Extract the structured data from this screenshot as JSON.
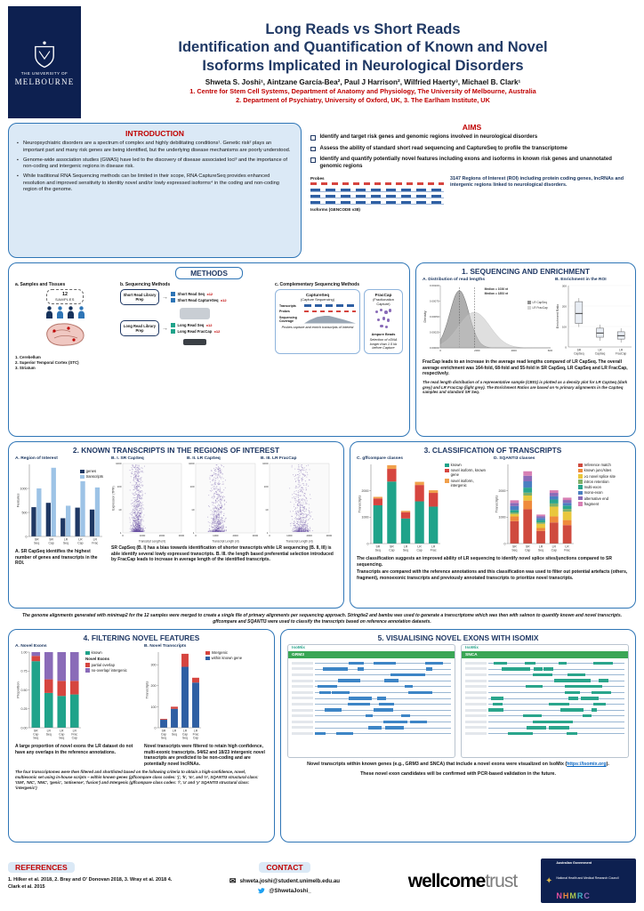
{
  "header": {
    "university_small": "THE UNIVERSITY OF",
    "university_large": "MELBOURNE",
    "title_lines": [
      "Long Reads vs Short Reads",
      "Identification and Quantification of Known and Novel",
      "Isoforms Implicated in Neurological Disorders"
    ],
    "authors": "Shweta S. Joshi¹, Aintzane García-Bea², Paul J Harrison², Wilfried Haerty³, Michael B. Clark¹",
    "affiliations": [
      "1. Centre for Stem Cell Systems, Department of Anatomy and Physiology, The University of Melbourne, Australia",
      "2. Department of Psychiatry, University of Oxford, UK, 3. The Earlham Institute, UK"
    ]
  },
  "introduction": {
    "title": "INTRODUCTION",
    "bullets": [
      "Neuropsychiatric disorders are a spectrum of complex and highly debilitating conditions¹. Genetic risk² plays an important part and many risk genes are being identified, but the underlying disease mechanisms are poorly understood.",
      "Genome-wide association studies (GWAS) have led to the discovery of disease associated loci³ and the importance of non-coding and intergenic regions in disease risk.",
      "While traditional RNA Sequencing methods can be limited in their scope, RNA CaptureSeq provides enhanced resolution and improved sensitivity to identity novel and/or lowly expressed isoforms⁴ in the coding and non-coding region of the genome."
    ]
  },
  "aims": {
    "title": "AIMS",
    "items": [
      "Identify and target risk genes and genomic regions involved in neurological disorders",
      "Assess the ability of standard short read sequencing and CaptureSeq to profile the transcriptome",
      "Identify and quantify potentially novel features including exons and isoforms in known risk genes and unannotated genomic regions"
    ],
    "figure": {
      "probes_label": "Probes",
      "isoforms_label": "Isoforms (GENCODE v38)",
      "caption": "3147 Regions of Interest (ROI) including protein coding genes, lncRNAs and intergenic regions linked to neurological disorders."
    }
  },
  "methods": {
    "title": "METHODS",
    "panel_a": {
      "title": "a. Samples and Tissues",
      "samples_number": "12",
      "samples_word": "SAMPLES",
      "regions": [
        "1. Cerebellum",
        "2. Superior Temporal Cortex (STC)",
        "3. Striatum"
      ]
    },
    "panel_b": {
      "title": "b. Sequencing Methods",
      "short_prep": "Short Read Library Prep",
      "long_prep": "Long Read Library Prep",
      "outputs": [
        {
          "label": "Short Read Seq",
          "tag": "x12"
        },
        {
          "label": "Short Read CaptureSeq",
          "tag": "x12"
        },
        {
          "label": "Long Read Seq",
          "tag": "x12"
        },
        {
          "label": "Long Read FracCap",
          "tag": "x12"
        }
      ]
    },
    "panel_c": {
      "title": "c. Complementary Sequencing Methods",
      "capture": {
        "title": "CaptureSeq",
        "subtitle": "(Capture Sequencing)",
        "labels": [
          "Transcripts",
          "Probes",
          "Sequencing Coverage"
        ],
        "caption": "Probes capture and enrich transcripts of interest"
      },
      "fraccap": {
        "title": "FracCap",
        "subtitle": "(Fractionation Capture)",
        "beads_label": "Ampure Beads",
        "caption": "Selection of cDNA longer than 1.5 kb before Capture"
      }
    }
  },
  "section1": {
    "title": "1. SEQUENCING AND ENRICHMENT",
    "caption_bold": "FracCap leads to an increase in the average read lengths compared of LR CapSeq. The overall average enrichment was 164-fold, 68-fold and 55-fold in SR CapSeq, LR CapSeq and LR FracCap, respectively.",
    "footnote": "The read length distribution of a representative sample (CB01) is plotted as a density plot for LR CapSeq (dark grey) and LR FracCap (light grey). The Enrichment Ratios are based on % primary alignments in the CapSeq samples and standard SR Seq."
  },
  "section2": {
    "title": "2. KNOWN TRANSCRIPTS IN THE REGIONS OF INTEREST",
    "caption_a": "A. SR CapSeq identifies the highest number of genes and transcripts in the ROI.",
    "caption_b": "SR CapSeq (B. I) has a bias towards identification of shorter transcripts while LR sequencing (B. II, III) is able identify several lowly expressed transcripts. B. III. the length based preferential selection introduced by FracCap leads to increase in average length of the identified transcripts.",
    "footnote": "The genome alignments generated with minimap2 for the 12 samples were merged to create a single file of primary alignments per sequencing approach. Stringtie2 and bambu was used to generate a transcriptome which was then with salmon to quantify known and novel transcripts.  gffcompare and SQANTI3 were used to classify the transcripts based on reference annotation datasets."
  },
  "section3": {
    "title": "3. CLASSIFICATION OF TRANSCRIPTS",
    "caption_bold": "The classification suggests an improved ability of LR sequencing to identify novel splice sites/junctions compared to SR sequencing.",
    "caption": "Transcripts are compared with the reference annotations and this classification was used to filter out potential artefacts (others, fragment), monoexonic transcripts and previously annotated transcripts to prioritize novel transcripts."
  },
  "section4": {
    "title": "4. FILTERING NOVEL FEATURES",
    "caption_a": "A large proportion of novel exons the LR dataset do not have any overlaps in the reference annotations.",
    "caption_b": "Novel transcripts were filtered to retain high confidence, multi-exonic transcripts. 54/62 and 18/23 intergenic novel transcripts are predicted to be non-coding and are potentially novel lncRNAs.",
    "footnote": "The four transcriptomes were then filtered and shortlisted based on the following criteria to obtain a high-confidence, novel, multiexonic set using in-house scripts – within known genes (gffcompare class codes: 'j', 'k', 'm', and 'n', SQANTI3 structural class: 'ISM', 'NIC', 'NNC', 'genic', 'antisense', 'fusion') and Intergenic (gffcompare class codes: 'i', 'u' and 'y' SQANTI3 structural class: 'intergenic')"
  },
  "section5": {
    "title": "5. VISUALISING NOVEL EXONS WITH ISOMIX",
    "isomix_label": "IsoMix",
    "gene_left": "GRM3",
    "gene_right": "SNCA",
    "caption_pre": "Novel transcripts within known genes (e.g., GRM3 and SNCA) that include a novel exons were visualized on IsoMix (",
    "caption_link": "https://isomix.org",
    "caption_post": ").",
    "caption_3": "These novel exon candidates will be confirmed with PCR-based validation in the future."
  },
  "footer": {
    "references_title": "REFERENCES",
    "references": "1. Hilker et al. 2018, 2. Bray and O' Donovan 2018, 3. Wray et al. 2018  4. Clark et al. 2015",
    "contact_title": "CONTACT",
    "email": "shweta.joshi@student.unimelb.edu.au",
    "twitter": "@ShwetaJoshi_",
    "wellcome_bold": "wellcome",
    "wellcome_light": "trust",
    "nhmrc": {
      "gov": "Australian Government",
      "name": "National Health and Medical Research Council",
      "letters": [
        "N",
        "H",
        "M",
        "R",
        "C"
      ]
    }
  },
  "chart_data": [
    {
      "id": "read_length_density",
      "type": "area",
      "title": "A. Distribution of read lengths",
      "ylabel": "Density",
      "yticks": [
        "0.00100",
        "0.00075",
        "0.00050",
        "0.00025",
        "0.00000"
      ],
      "xticks": [
        0,
        2000,
        4000,
        6000
      ],
      "xlim": [
        0,
        6000
      ],
      "series": [
        {
          "name": "LR CapSeq",
          "color": "#6b6b6b",
          "median": 1036,
          "peak": 0.001,
          "spread": 520
        },
        {
          "name": "LR FracCap",
          "color": "#c4c4c4",
          "median": 1853,
          "peak": 0.00062,
          "spread": 850
        }
      ],
      "annotations": [
        "Median = 1036 nt",
        "Median = 1853 nt"
      ]
    },
    {
      "id": "enrichment",
      "type": "box",
      "title": "B. Enrichment in the ROI",
      "ylabel": "Enrichment Ratio",
      "yticks": [
        0,
        100,
        200,
        300
      ],
      "ylim": [
        0,
        300
      ],
      "categories": [
        "SR CapSeq",
        "LR CapSeq",
        "LR FracCap"
      ],
      "values": [
        164,
        68,
        55
      ]
    },
    {
      "id": "roi_features",
      "type": "bar",
      "mode": "group",
      "title": "A. Region of Interest",
      "ylabel": "Features",
      "yticks": [
        0,
        500,
        1000
      ],
      "ylim": [
        0,
        1500
      ],
      "categories": [
        "SR Seq",
        "SR Cap",
        "LR Seq",
        "LR Cap",
        "LR Frac"
      ],
      "series": [
        {
          "name": "genes",
          "color": "#1f3864",
          "values": [
            610,
            700,
            380,
            600,
            560
          ]
        },
        {
          "name": "transcripts",
          "color": "#9dc3e6",
          "values": [
            1000,
            1430,
            640,
            1150,
            1020
          ]
        }
      ]
    },
    {
      "id": "scatter_sr",
      "type": "scatter-cloud",
      "title": "B. I. SR CapSeq",
      "xlabel": "Transcript Length (nt)",
      "ylabel": "Expression (TPM)",
      "yticks": [
        "1",
        "10",
        "100",
        "1000"
      ],
      "xticks": [
        0,
        1000,
        2000,
        3000
      ],
      "xlim": [
        0,
        3000
      ],
      "n": 900,
      "x_mean": 750,
      "x_spread": 450,
      "color": "#6a51a3",
      "seed": 17
    },
    {
      "id": "scatter_lr",
      "type": "scatter-cloud",
      "title": "B. II. LR CapSeq",
      "xlabel": "Transcript Length (nt)",
      "yticks": [
        "1",
        "10",
        "100",
        "1000"
      ],
      "xticks": [
        0,
        1000,
        2000,
        3000
      ],
      "xlim": [
        0,
        3000
      ],
      "n": 650,
      "x_mean": 1100,
      "x_spread": 550,
      "color": "#6a51a3",
      "seed": 29
    },
    {
      "id": "scatter_frac",
      "type": "scatter-cloud",
      "title": "B. III. LR FracCap",
      "xlabel": "Transcript Length (nt)",
      "yticks": [
        "1",
        "10",
        "100",
        "1000"
      ],
      "xticks": [
        0,
        1000,
        2000,
        3000
      ],
      "xlim": [
        0,
        3000
      ],
      "n": 600,
      "x_mean": 1600,
      "x_spread": 650,
      "color": "#6a51a3",
      "seed": 43
    },
    {
      "id": "gffcompare",
      "type": "stacked-bar",
      "title": "C. gffcompare classes",
      "ylabel": "Transcripts",
      "yticks": [
        0,
        1000,
        2000
      ],
      "ylim": [
        0,
        3000
      ],
      "categories": [
        "SR Seq",
        "SR Cap",
        "LR Seq",
        "LR Cap",
        "LR Frac"
      ],
      "series": [
        {
          "name": "known",
          "color": "#1fa38a",
          "values": [
            1450,
            2350,
            950,
            1600,
            1400
          ]
        },
        {
          "name": "novel isoform, known gene",
          "color": "#d6453f",
          "values": [
            260,
            480,
            240,
            620,
            520
          ]
        },
        {
          "name": "novel isoform, intergenic",
          "color": "#f0a04b",
          "values": [
            60,
            140,
            50,
            120,
            100
          ]
        }
      ]
    },
    {
      "id": "sqanti3",
      "type": "stacked-bar",
      "title": "D. SQANTI3 classes",
      "ylabel": "Transcripts",
      "yticks": [
        0,
        1000,
        2000
      ],
      "ylim": [
        0,
        3000
      ],
      "categories": [
        "SR Seq",
        "SR Cap",
        "LR Seq",
        "LR Cap",
        "LR Frac"
      ],
      "series": [
        {
          "name": "reference match",
          "color": "#cf4a3e",
          "values": [
            850,
            1300,
            480,
            800,
            700
          ]
        },
        {
          "name": "known junc/sites",
          "color": "#ef8a3c",
          "values": [
            180,
            330,
            110,
            230,
            190
          ]
        },
        {
          "name": "≥1 novel splice site",
          "color": "#e9c73c",
          "values": [
            90,
            190,
            160,
            370,
            320
          ]
        },
        {
          "name": "intron retention",
          "color": "#7fb069",
          "values": [
            60,
            110,
            60,
            120,
            100
          ]
        },
        {
          "name": "multi-exon",
          "color": "#2aa58c",
          "values": [
            90,
            190,
            80,
            150,
            130
          ]
        },
        {
          "name": "mono-exon",
          "color": "#4a7fc1",
          "values": [
            150,
            240,
            80,
            120,
            100
          ]
        },
        {
          "name": "alternative end",
          "color": "#8a6bb8",
          "values": [
            120,
            210,
            70,
            130,
            110
          ]
        },
        {
          "name": "fragment",
          "color": "#d77fb4",
          "values": [
            100,
            170,
            60,
            100,
            90
          ]
        }
      ]
    },
    {
      "id": "novel_exons",
      "type": "stacked-bar",
      "title": "A. Novel Exons",
      "ylabel": "Proportion",
      "yticks": [
        "0.00",
        "0.25",
        "0.50",
        "0.75",
        "1.00"
      ],
      "ylim": [
        0,
        1
      ],
      "legend_heading": "Novel Exons",
      "legend_heading_index": 1,
      "categories": [
        "SR Cap Seq",
        "LR Seq",
        "LR Cap Seq",
        "LR Frac Cap"
      ],
      "series": [
        {
          "name": "known",
          "color": "#1fa38a",
          "values": [
            0.88,
            0.46,
            0.42,
            0.44
          ]
        },
        {
          "name": "partial overlap",
          "color": "#d6453f",
          "values": [
            0.07,
            0.18,
            0.2,
            0.18
          ]
        },
        {
          "name": "no-overlap/ intergenic",
          "color": "#8a6bb8",
          "values": [
            0.05,
            0.36,
            0.38,
            0.38
          ]
        }
      ]
    },
    {
      "id": "novel_transcripts",
      "type": "stacked-bar",
      "title": "B. Novel Transcripts",
      "ylabel": "Transcripts",
      "yticks": [
        0,
        100,
        200,
        300
      ],
      "ylim": [
        0,
        360
      ],
      "legend_reverse": true,
      "categories": [
        "SR Cap Seq",
        "LR Seq",
        "LR Cap Seq",
        "LR Frac Cap"
      ],
      "series": [
        {
          "name": "within known gene",
          "color": "#2e5fa3",
          "values": [
            38,
            90,
            290,
            215
          ]
        },
        {
          "name": "Intergenic",
          "color": "#d6453f",
          "values": [
            4,
            10,
            62,
            23
          ]
        }
      ]
    }
  ]
}
